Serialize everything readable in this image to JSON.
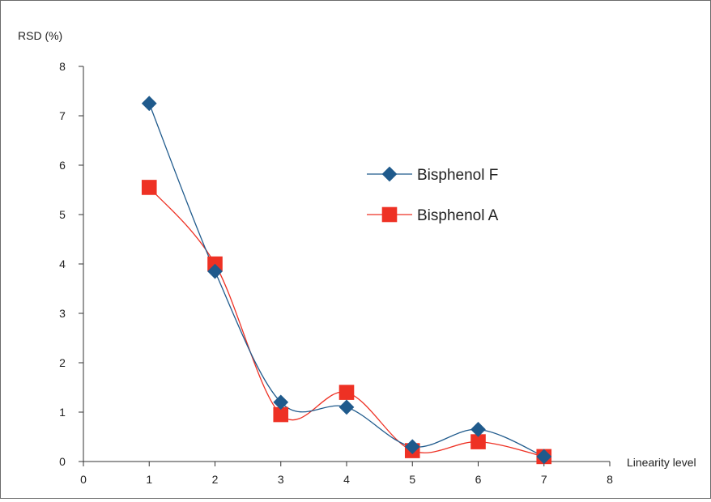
{
  "chart_data": {
    "type": "line",
    "title": "",
    "xlabel": "Linearity level",
    "ylabel": "RSD (%)",
    "xlim": [
      0,
      8
    ],
    "ylim": [
      0,
      8
    ],
    "x_ticks": [
      0,
      1,
      2,
      3,
      4,
      5,
      6,
      7,
      8
    ],
    "y_ticks": [
      0,
      1,
      2,
      3,
      4,
      5,
      6,
      7,
      8
    ],
    "grid": false,
    "smooth": true,
    "legend_position": "right-center",
    "series": [
      {
        "name": "Bisphenol F",
        "marker": "diamond",
        "color": "#1f5a8c",
        "x": [
          1,
          2,
          3,
          4,
          5,
          6,
          7
        ],
        "y": [
          7.25,
          3.85,
          1.2,
          1.1,
          0.3,
          0.65,
          0.1
        ]
      },
      {
        "name": "Bisphenol A",
        "marker": "square",
        "color": "#ee3124",
        "x": [
          1,
          2,
          3,
          4,
          5,
          6,
          7
        ],
        "y": [
          5.55,
          4.0,
          0.95,
          1.4,
          0.22,
          0.4,
          0.1
        ]
      }
    ]
  }
}
